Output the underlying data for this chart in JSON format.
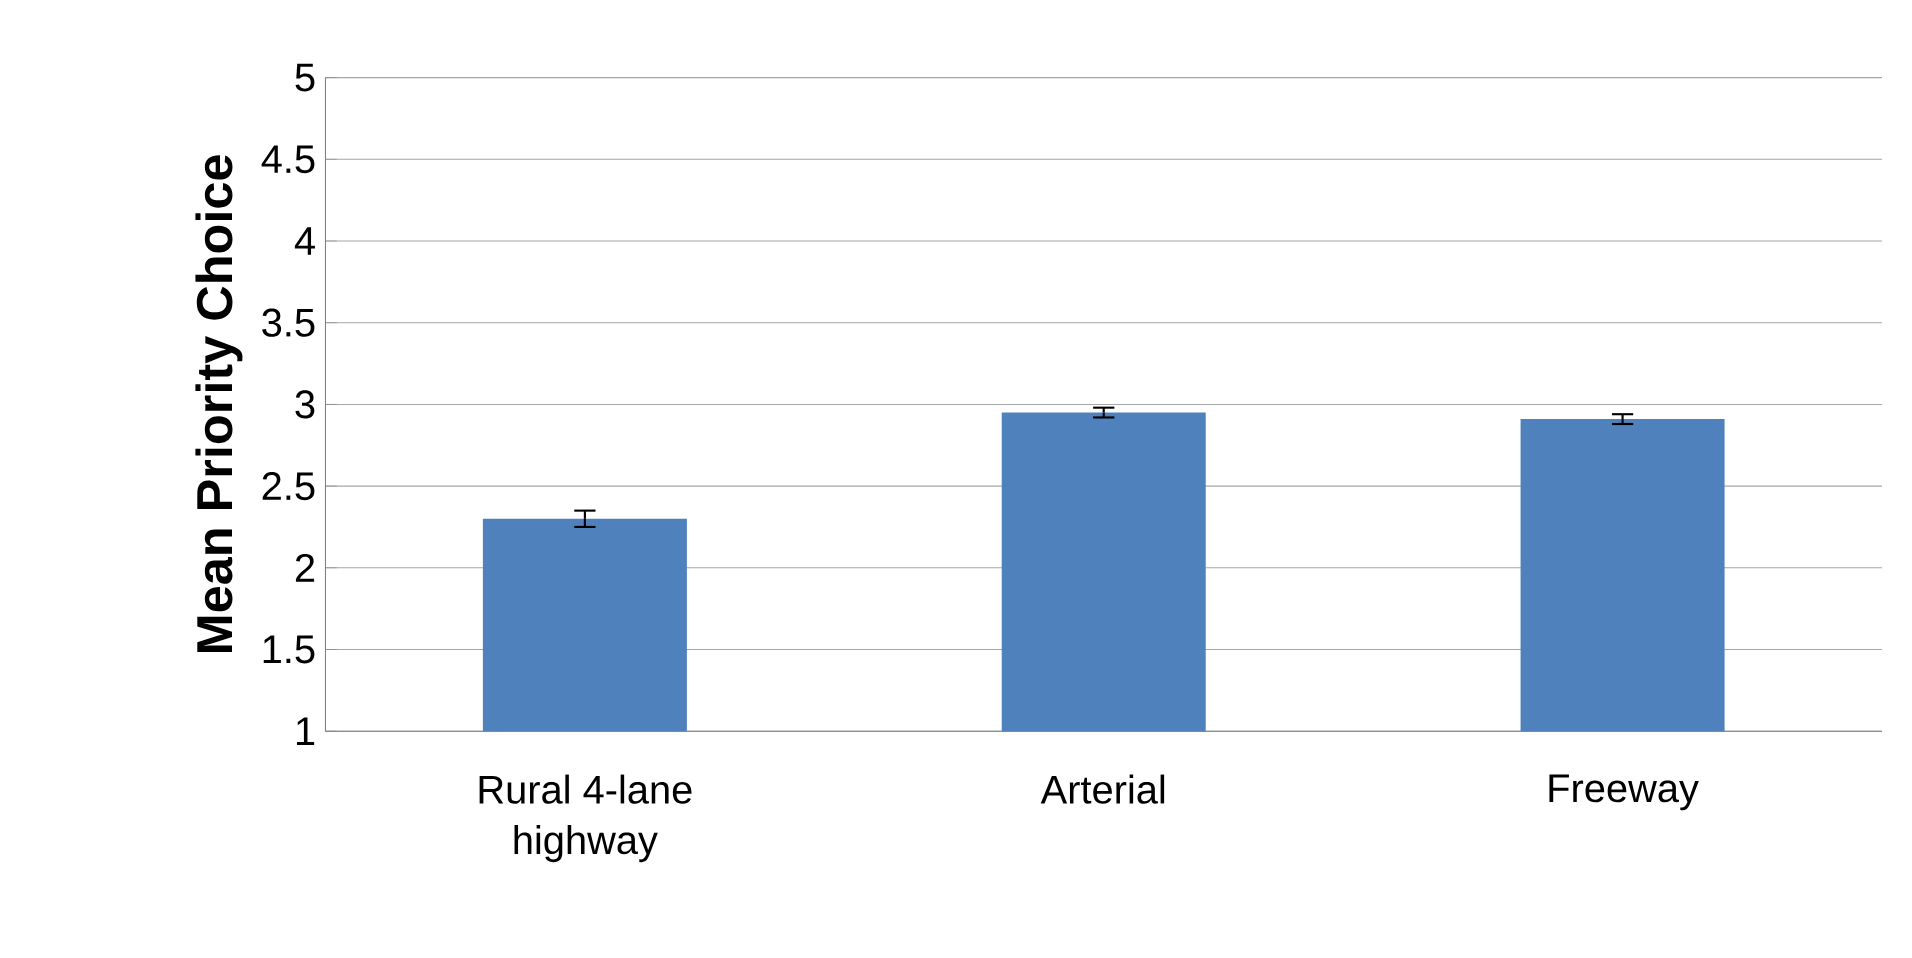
{
  "chart_data": {
    "type": "bar",
    "ylabel": "Mean Priority Choice",
    "categories": [
      "Rural 4-lane highway",
      "Arterial",
      "Freeway"
    ],
    "values": [
      2.3,
      2.95,
      2.91
    ],
    "errors": [
      0.05,
      0.03,
      0.03
    ],
    "color": "#4f81bd",
    "ylim": [
      1,
      5
    ],
    "yticks": [
      1,
      1.5,
      2,
      2.5,
      3,
      3.5,
      4,
      4.5,
      5
    ],
    "grid": "y"
  }
}
